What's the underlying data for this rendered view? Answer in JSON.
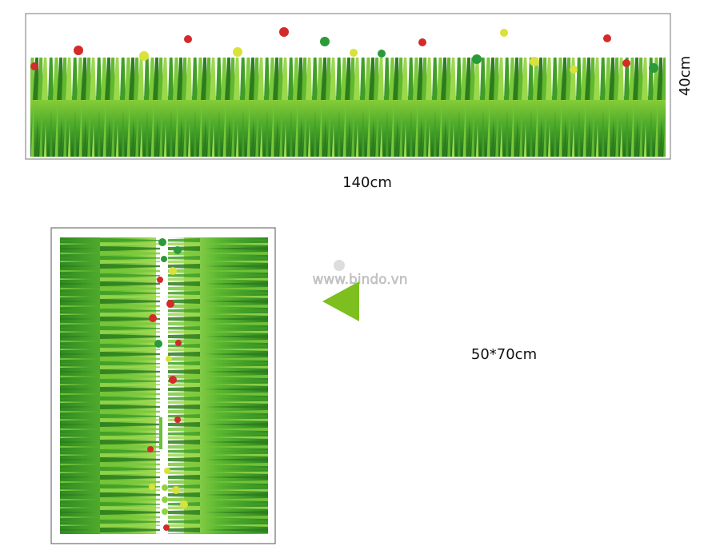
{
  "strip": {
    "height_label": "40cm",
    "width_label": "140cm"
  },
  "sheet": {
    "size_label": "50*70cm"
  },
  "watermark": "www.bindo.vn"
}
